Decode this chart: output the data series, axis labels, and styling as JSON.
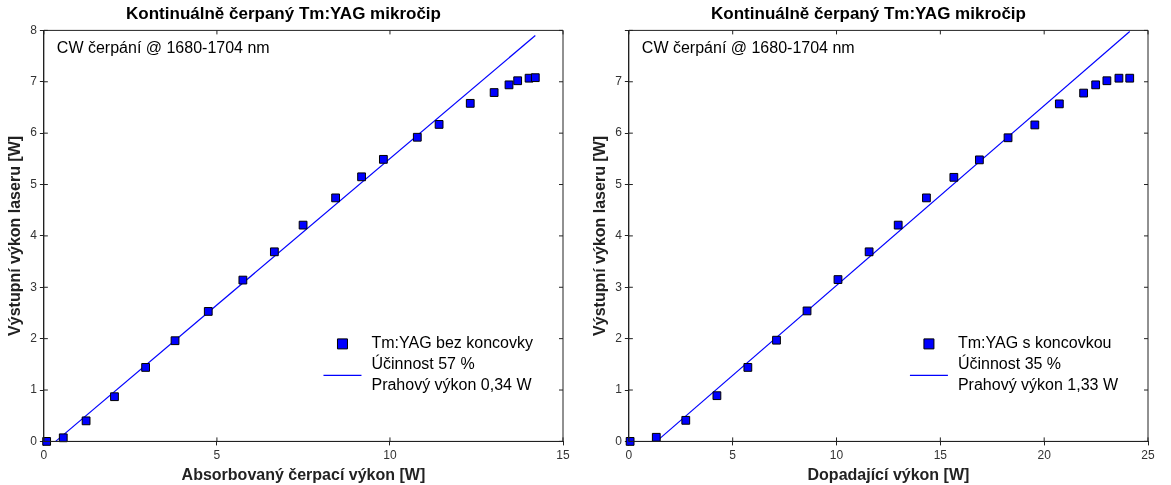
{
  "chart_data": [
    {
      "type": "scatter",
      "title": "Kontinuálně čerpaný Tm:YAG mikročip",
      "xlabel": "Absorbovaný čerpací výkon [W]",
      "ylabel": "Výstupní výkon laseru [W]",
      "annotations": [
        "CW čerpání @ 1680-1704 nm"
      ],
      "xlim": [
        0,
        15
      ],
      "xticks": [
        0,
        5,
        10,
        15
      ],
      "ylim": [
        0,
        8
      ],
      "yticks": [
        0,
        1,
        2,
        3,
        4,
        5,
        6,
        7,
        8
      ],
      "grid": false,
      "legend": "bottom right",
      "marker": "square",
      "x": [
        0.08,
        0.56,
        1.22,
        2.04,
        2.94,
        3.79,
        4.75,
        5.75,
        6.66,
        7.49,
        8.43,
        9.18,
        9.81,
        10.79,
        11.42,
        12.32,
        13.01,
        13.44,
        13.69,
        14.02,
        14.2
      ],
      "series": [
        {
          "name": "Tm:YAG bez koncovky",
          "color": "#0000ff",
          "values": [
            0,
            0.07,
            0.4,
            0.87,
            1.44,
            1.96,
            2.53,
            3.14,
            3.69,
            4.21,
            4.74,
            5.15,
            5.49,
            5.92,
            6.17,
            6.58,
            6.79,
            6.94,
            7.02,
            7.07,
            7.08
          ]
        },
        {
          "type": "line",
          "name": "Účinnost 57 %\nPrahový výkon 0,34 W",
          "color": "#0000ff",
          "marker": "none",
          "x": [
            0.34,
            14.2
          ],
          "values": [
            0,
            7.9
          ]
        }
      ]
    },
    {
      "type": "scatter",
      "title": "Kontinuálně čerpaný Tm:YAG mikročip",
      "xlabel": "Dopadající výkon [W]",
      "ylabel": "Výstupní výkon laseru [W]",
      "annotations": [
        "CW čerpání @ 1680-1704 nm"
      ],
      "xlim": [
        0,
        25
      ],
      "xticks": [
        0,
        5,
        10,
        15,
        20,
        25
      ],
      "ylim": [
        0,
        8
      ],
      "yticks": [
        0,
        1,
        2,
        3,
        4,
        5,
        6,
        7,
        {
          "value": 8,
          "label": null
        }
      ],
      "grid": false,
      "legend": "bottom right",
      "marker": "square",
      "x": [
        0.06,
        1.32,
        2.74,
        4.24,
        5.73,
        7.11,
        8.58,
        10.07,
        11.57,
        12.97,
        14.33,
        15.65,
        16.88,
        18.26,
        19.55,
        20.73,
        21.9,
        22.48,
        23.02,
        23.6,
        24.12
      ],
      "series": [
        {
          "name": "Tm:YAG s koncovkou",
          "color": "#0000ff",
          "values": [
            0,
            0.08,
            0.41,
            0.89,
            1.44,
            1.97,
            2.54,
            3.15,
            3.69,
            4.21,
            4.74,
            5.14,
            5.48,
            5.91,
            6.16,
            6.57,
            6.78,
            6.94,
            7.02,
            7.07,
            7.07
          ]
        },
        {
          "type": "line",
          "name": "Účinnost 35 %\nPrahový výkon 1,33 W",
          "color": "#0000ff",
          "marker": "none",
          "x": [
            1.33,
            24.12
          ],
          "values": [
            0,
            7.98
          ]
        }
      ]
    }
  ]
}
